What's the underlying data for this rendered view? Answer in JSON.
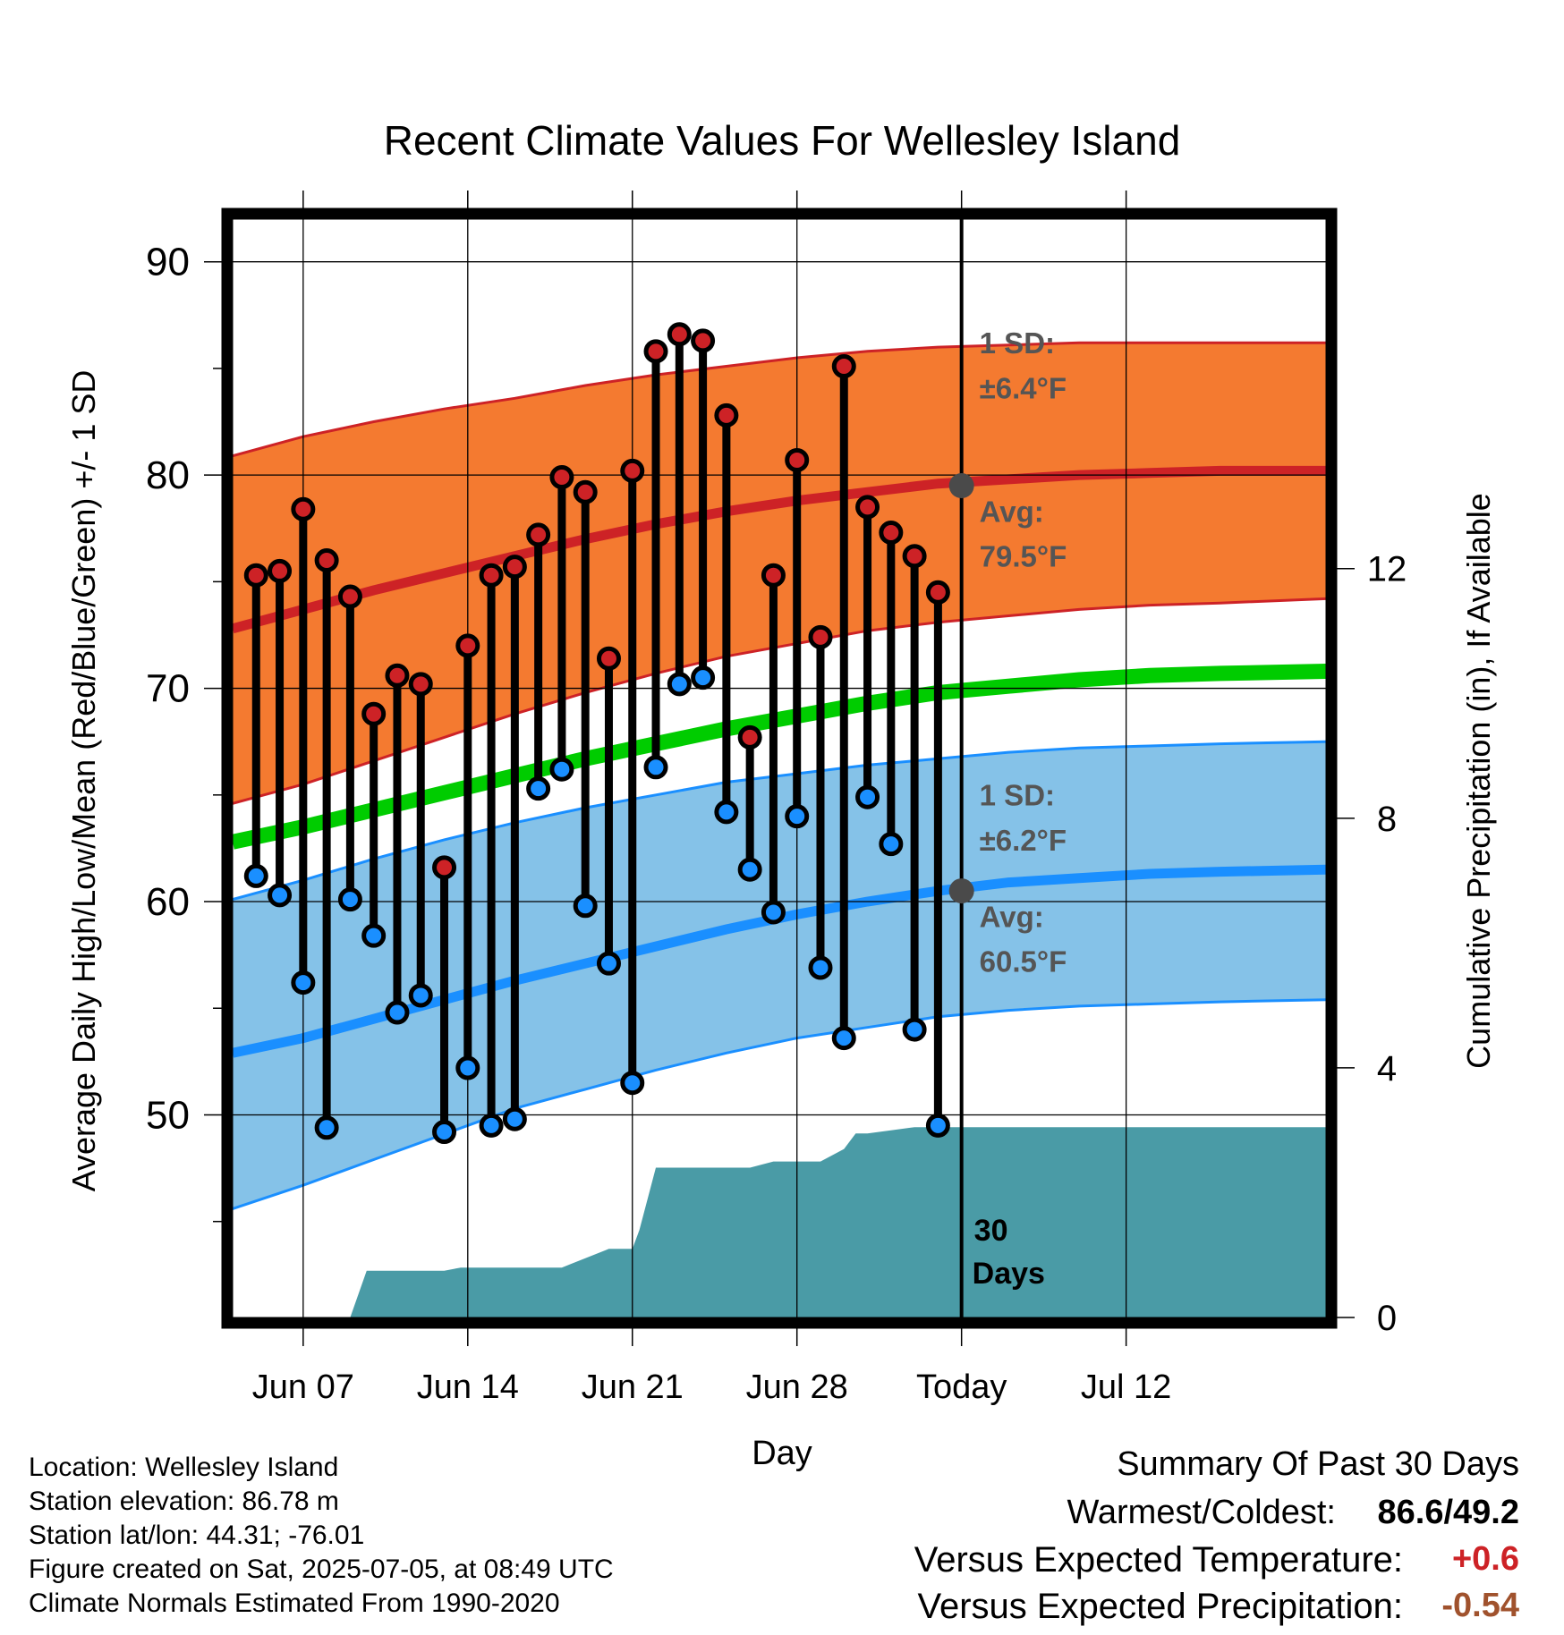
{
  "title": "Recent Climate Values For Wellesley Island",
  "chart_data": {
    "type": "line",
    "title": "Recent Climate Values For Wellesley Island",
    "xlabel": "Day",
    "ylabel": "Average Daily High/Low/Mean (Red/Blue/Green) +/- 1 SD",
    "y2label": "Cumulative Precipitation (in), If Available",
    "ylim": [
      40.5,
      92
    ],
    "y2lim": [
      0,
      17.6
    ],
    "xlim": [
      0,
      46.5
    ],
    "yticks": [
      50,
      60,
      70,
      80,
      90
    ],
    "y2ticks": [
      0,
      4,
      8,
      12
    ],
    "xticks": [
      {
        "x": 3,
        "label": "Jun 07"
      },
      {
        "x": 10,
        "label": "Jun 14"
      },
      {
        "x": 17,
        "label": "Jun 21"
      },
      {
        "x": 24,
        "label": "Jun 28"
      },
      {
        "x": 31,
        "label": "Today"
      },
      {
        "x": 38,
        "label": "Jul 12"
      }
    ],
    "today_x": 31,
    "daily": {
      "x": [
        1,
        2,
        3,
        4,
        5,
        6,
        7,
        8,
        9,
        10,
        11,
        12,
        13,
        14,
        15,
        16,
        17,
        18,
        19,
        20,
        21,
        22,
        23,
        24,
        25,
        26,
        27,
        28,
        29,
        30
      ],
      "high": [
        75.3,
        75.5,
        78.4,
        76.0,
        74.3,
        68.8,
        70.6,
        70.2,
        61.6,
        72.0,
        75.3,
        75.7,
        77.2,
        79.9,
        79.2,
        71.4,
        80.2,
        85.8,
        86.6,
        86.3,
        82.8,
        67.7,
        75.3,
        80.7,
        72.4,
        85.1,
        78.5,
        77.3,
        76.2,
        74.5
      ],
      "low": [
        61.2,
        60.3,
        56.2,
        49.4,
        60.1,
        58.4,
        54.8,
        55.6,
        49.2,
        52.2,
        49.5,
        49.8,
        65.3,
        66.2,
        59.8,
        57.1,
        51.5,
        66.3,
        70.2,
        70.5,
        64.2,
        61.5,
        59.5,
        64.0,
        56.9,
        53.6,
        64.9,
        62.7,
        54.0,
        49.5
      ]
    },
    "normals": {
      "x": [
        0,
        3,
        6,
        9,
        12,
        15,
        18,
        21,
        24,
        27,
        30,
        33,
        36,
        39,
        42,
        46.5
      ],
      "high_avg": [
        72.8,
        73.7,
        74.6,
        75.4,
        76.2,
        77.0,
        77.7,
        78.3,
        78.8,
        79.2,
        79.6,
        79.8,
        80.0,
        80.1,
        80.2,
        80.2
      ],
      "high_upper": [
        80.9,
        81.8,
        82.5,
        83.1,
        83.6,
        84.2,
        84.7,
        85.1,
        85.5,
        85.8,
        86.0,
        86.1,
        86.2,
        86.2,
        86.2,
        86.2
      ],
      "high_lower": [
        64.6,
        65.5,
        66.6,
        67.7,
        68.8,
        69.8,
        70.7,
        71.5,
        72.1,
        72.7,
        73.1,
        73.4,
        73.7,
        73.9,
        74.0,
        74.2
      ],
      "mean": [
        62.8,
        63.5,
        64.3,
        65.1,
        65.9,
        66.7,
        67.4,
        68.1,
        68.7,
        69.3,
        69.8,
        70.1,
        70.4,
        70.6,
        70.7,
        70.8
      ],
      "low_avg": [
        52.9,
        53.6,
        54.5,
        55.4,
        56.3,
        57.1,
        57.9,
        58.7,
        59.4,
        60.0,
        60.5,
        60.9,
        61.1,
        61.3,
        61.4,
        61.5
      ],
      "low_upper": [
        60.1,
        61.0,
        62.0,
        62.9,
        63.7,
        64.4,
        65.0,
        65.6,
        66.0,
        66.4,
        66.7,
        67.0,
        67.2,
        67.3,
        67.4,
        67.5
      ],
      "low_lower": [
        45.6,
        46.7,
        47.9,
        49.1,
        50.3,
        51.2,
        52.1,
        52.9,
        53.6,
        54.1,
        54.6,
        54.9,
        55.1,
        55.2,
        55.3,
        55.4
      ]
    },
    "precip": {
      "x": [
        0,
        5,
        5.7,
        9,
        9.7,
        14,
        16,
        17,
        17.3,
        18,
        22,
        23,
        25,
        26,
        26.5,
        27,
        28,
        29,
        30,
        31,
        32,
        46.5
      ],
      "cumulative": [
        0,
        0,
        0.75,
        0.75,
        0.8,
        0.8,
        1.1,
        1.1,
        1.4,
        2.4,
        2.4,
        2.5,
        2.5,
        2.7,
        2.95,
        2.95,
        3.0,
        3.05,
        3.05,
        3.05,
        3.05,
        3.05
      ]
    },
    "high_sd": "1 SD:",
    "high_sd_value": "±6.4°F",
    "high_avg_label": "Avg:",
    "high_avg_value": "79.5°F",
    "low_sd": "1 SD:",
    "low_sd_value": "±6.2°F",
    "low_avg_label": "Avg:",
    "low_avg_value": "60.5°F",
    "period_label_1": "30",
    "period_label_2": "Days"
  },
  "colors": {
    "high_band": "#f47a30",
    "high_line": "#cd2226",
    "low_band": "#85c2e8",
    "low_line": "#1a8fff",
    "mean_line": "#00cc00",
    "precip": "#4a9ba6",
    "marker_high": "#cd2226",
    "marker_low": "#1a8fff",
    "annotation": "#555555",
    "departure_temp": "#cd2226",
    "departure_precip": "#a0522d"
  },
  "info": {
    "location": "Location: Wellesley Island",
    "elevation": "Station elevation: 86.78 m",
    "latlon": "Station lat/lon: 44.31; -76.01",
    "created": "Figure created on Sat, 2025-07-05, at 08:49 UTC",
    "normals": "Climate Normals Estimated From 1990-2020"
  },
  "summary": {
    "heading": "Summary Of Past 30 Days",
    "warm_cold_label": "Warmest/Coldest:",
    "warm_cold_value": "86.6/49.2",
    "temp_label": "Versus Expected Temperature:",
    "temp_value": "+0.6",
    "precip_label": "Versus Expected Precipitation:",
    "precip_value": "-0.54"
  }
}
